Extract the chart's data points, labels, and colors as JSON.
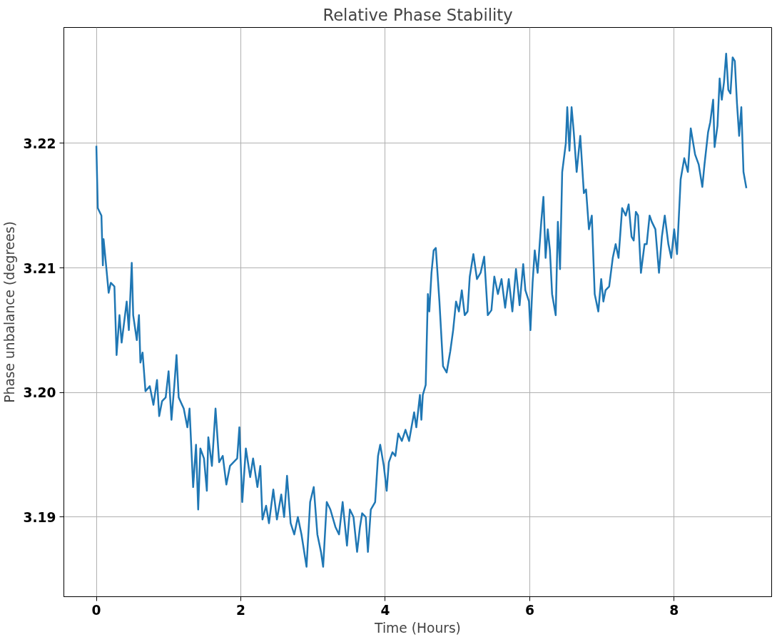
{
  "chart_data": {
    "type": "line",
    "title": "Relative Phase Stability",
    "xlabel": "Time (Hours)",
    "ylabel": "Phase unbalance (degrees)",
    "xlim": [
      -0.45,
      9.35
    ],
    "ylim": [
      3.1836,
      3.2293
    ],
    "xticks": [
      0,
      2,
      4,
      6,
      8
    ],
    "yticks": [
      {
        "value": 3.19,
        "label": "3.19"
      },
      {
        "value": 3.2,
        "label": "3.20"
      },
      {
        "value": 3.21,
        "label": "3.21"
      },
      {
        "value": 3.22,
        "label": "3.22"
      }
    ],
    "grid": true,
    "line_style": "solid",
    "series": [
      {
        "color": "#1f77b4",
        "x": [
          0,
          0.02,
          0.07,
          0.09,
          0.1,
          0.13,
          0.17,
          0.2,
          0.25,
          0.28,
          0.32,
          0.35,
          0.42,
          0.45,
          0.49,
          0.51,
          0.56,
          0.59,
          0.61,
          0.64,
          0.68,
          0.74,
          0.79,
          0.84,
          0.87,
          0.91,
          0.96,
          1.0,
          1.04,
          1.08,
          1.11,
          1.14,
          1.21,
          1.26,
          1.29,
          1.34,
          1.38,
          1.41,
          1.44,
          1.49,
          1.53,
          1.55,
          1.6,
          1.65,
          1.7,
          1.75,
          1.8,
          1.85,
          1.95,
          1.98,
          2.02,
          2.07,
          2.13,
          2.17,
          2.23,
          2.27,
          2.3,
          2.35,
          2.39,
          2.45,
          2.5,
          2.56,
          2.6,
          2.64,
          2.69,
          2.74,
          2.79,
          2.84,
          2.91,
          2.96,
          3.01,
          3.06,
          3.11,
          3.14,
          3.19,
          3.24,
          3.31,
          3.36,
          3.41,
          3.47,
          3.51,
          3.56,
          3.61,
          3.65,
          3.68,
          3.73,
          3.76,
          3.8,
          3.86,
          3.9,
          3.93,
          3.98,
          4.02,
          4.05,
          4.1,
          4.14,
          4.18,
          4.23,
          4.28,
          4.33,
          4.36,
          4.4,
          4.43,
          4.48,
          4.5,
          4.52,
          4.56,
          4.59,
          4.61,
          4.64,
          4.67,
          4.7,
          4.75,
          4.8,
          4.85,
          4.9,
          4.94,
          4.98,
          5.02,
          5.06,
          5.1,
          5.14,
          5.17,
          5.22,
          5.27,
          5.32,
          5.37,
          5.42,
          5.47,
          5.51,
          5.56,
          5.61,
          5.66,
          5.71,
          5.76,
          5.81,
          5.86,
          5.91,
          5.94,
          5.99,
          6.01,
          6.04,
          6.07,
          6.11,
          6.16,
          6.19,
          6.22,
          6.25,
          6.28,
          6.31,
          6.36,
          6.39,
          6.42,
          6.45,
          6.5,
          6.52,
          6.55,
          6.58,
          6.61,
          6.65,
          6.7,
          6.75,
          6.78,
          6.82,
          6.86,
          6.9,
          6.95,
          6.99,
          7.02,
          7.05,
          7.1,
          7.15,
          7.19,
          7.23,
          7.28,
          7.33,
          7.37,
          7.41,
          7.44,
          7.47,
          7.5,
          7.54,
          7.59,
          7.62,
          7.66,
          7.69,
          7.74,
          7.79,
          7.83,
          7.87,
          7.92,
          7.96,
          8.0,
          8.04,
          8.09,
          8.14,
          8.19,
          8.23,
          8.29,
          8.34,
          8.39,
          8.42,
          8.47,
          8.5,
          8.54,
          8.56,
          8.6,
          8.63,
          8.66,
          8.69,
          8.72,
          8.75,
          8.78,
          8.81,
          8.84,
          8.87,
          8.9,
          8.93,
          8.96,
          9.0
        ],
        "values": [
          3.2198,
          3.2148,
          3.2142,
          3.2102,
          3.2123,
          3.2105,
          3.208,
          3.2088,
          3.2085,
          3.203,
          3.2062,
          3.204,
          3.2073,
          3.205,
          3.2104,
          3.2062,
          3.2042,
          3.2062,
          3.2024,
          3.2032,
          3.2001,
          3.2005,
          3.199,
          3.201,
          3.1981,
          3.1993,
          3.1996,
          3.2017,
          3.1978,
          3.2006,
          3.203,
          3.1996,
          3.1987,
          3.1972,
          3.1987,
          3.1924,
          3.1958,
          3.1906,
          3.1955,
          3.1947,
          3.1921,
          3.1964,
          3.1941,
          3.1987,
          3.1944,
          3.1949,
          3.1926,
          3.1941,
          3.1947,
          3.1972,
          3.1912,
          3.1955,
          3.1932,
          3.1947,
          3.1924,
          3.1941,
          3.1898,
          3.1909,
          3.1895,
          3.1922,
          3.1898,
          3.1918,
          3.19,
          3.1933,
          3.1895,
          3.1886,
          3.19,
          3.1886,
          3.186,
          3.1912,
          3.1924,
          3.1886,
          3.1872,
          3.186,
          3.1912,
          3.1906,
          3.1892,
          3.1886,
          3.1912,
          3.1877,
          3.1906,
          3.19,
          3.1872,
          3.1892,
          3.1903,
          3.19,
          3.1872,
          3.1906,
          3.1912,
          3.1949,
          3.1958,
          3.1941,
          3.1921,
          3.1944,
          3.1952,
          3.1949,
          3.1967,
          3.1961,
          3.197,
          3.1961,
          3.1971,
          3.1984,
          3.1972,
          3.1998,
          3.1978,
          3.1998,
          3.2006,
          3.2079,
          3.2065,
          3.2096,
          3.2114,
          3.2116,
          3.2073,
          3.2021,
          3.2016,
          3.2033,
          3.205,
          3.2073,
          3.2065,
          3.2082,
          3.2062,
          3.2065,
          3.2093,
          3.2111,
          3.2091,
          3.2096,
          3.2109,
          3.2062,
          3.2066,
          3.2093,
          3.2079,
          3.2091,
          3.2068,
          3.2091,
          3.2065,
          3.2099,
          3.207,
          3.2103,
          3.2082,
          3.2073,
          3.205,
          3.2088,
          3.2114,
          3.2096,
          3.2137,
          3.2157,
          3.2108,
          3.2131,
          3.2114,
          3.2079,
          3.2062,
          3.2137,
          3.2099,
          3.2177,
          3.22,
          3.2229,
          3.2194,
          3.2229,
          3.2209,
          3.2177,
          3.2206,
          3.216,
          3.2163,
          3.2131,
          3.2142,
          3.2079,
          3.2065,
          3.2091,
          3.2073,
          3.2082,
          3.2085,
          3.2108,
          3.2119,
          3.2108,
          3.2148,
          3.2142,
          3.2151,
          3.2125,
          3.2122,
          3.2145,
          3.2142,
          3.2096,
          3.2119,
          3.2119,
          3.2142,
          3.2137,
          3.2131,
          3.2096,
          3.2125,
          3.2142,
          3.2119,
          3.2108,
          3.2131,
          3.2111,
          3.2171,
          3.2188,
          3.2177,
          3.2212,
          3.2191,
          3.2183,
          3.2165,
          3.2183,
          3.2209,
          3.2217,
          3.2235,
          3.2197,
          3.2214,
          3.2252,
          3.2235,
          3.2249,
          3.2272,
          3.2243,
          3.224,
          3.2269,
          3.2266,
          3.2232,
          3.2206,
          3.2229,
          3.2177,
          3.2164
        ]
      }
    ]
  }
}
